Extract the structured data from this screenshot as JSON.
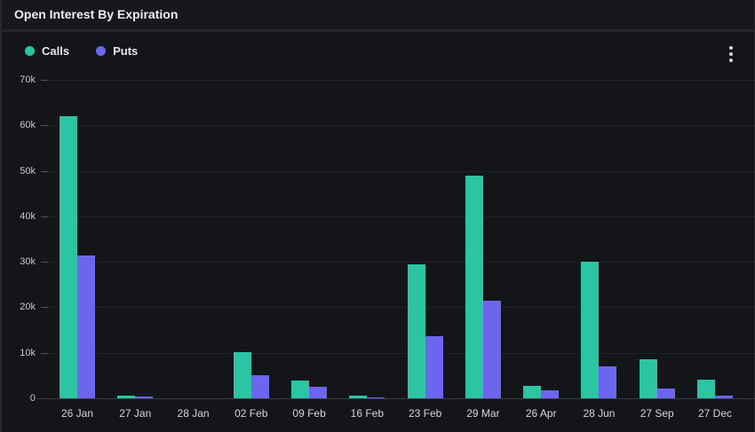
{
  "header": {
    "title": "Open Interest By Expiration"
  },
  "icons": {
    "menu": "kebab-vertical-dots"
  },
  "colors": {
    "calls": "#2bc5a4",
    "puts": "#6c65ee",
    "background": "#141519",
    "header_background": "#17181c"
  },
  "chart_data": {
    "type": "bar",
    "title": "Open Interest By Expiration",
    "categories": [
      "26 Jan",
      "27 Jan",
      "28 Jan",
      "02 Feb",
      "09 Feb",
      "16 Feb",
      "23 Feb",
      "29 Mar",
      "26 Apr",
      "28 Jun",
      "27 Sep",
      "27 Dec"
    ],
    "series": [
      {
        "name": "Calls",
        "color": "#2bc5a4",
        "values": [
          62000,
          500,
          0,
          10200,
          3900,
          500,
          29500,
          49000,
          2700,
          30000,
          8500,
          4000
        ]
      },
      {
        "name": "Puts",
        "color": "#6c65ee",
        "values": [
          31300,
          300,
          0,
          5000,
          2500,
          100,
          13700,
          21500,
          1800,
          7000,
          2100,
          600
        ]
      }
    ],
    "xlabel": "",
    "ylabel": "",
    "ylim": [
      0,
      70000
    ],
    "y_ticks": [
      {
        "value": 0,
        "label": "0"
      },
      {
        "value": 10000,
        "label": "10k"
      },
      {
        "value": 20000,
        "label": "20k"
      },
      {
        "value": 30000,
        "label": "30k"
      },
      {
        "value": 40000,
        "label": "40k"
      },
      {
        "value": 50000,
        "label": "50k"
      },
      {
        "value": 60000,
        "label": "60k"
      },
      {
        "value": 70000,
        "label": "70k"
      }
    ],
    "grid": true,
    "legend_position": "top-left"
  }
}
